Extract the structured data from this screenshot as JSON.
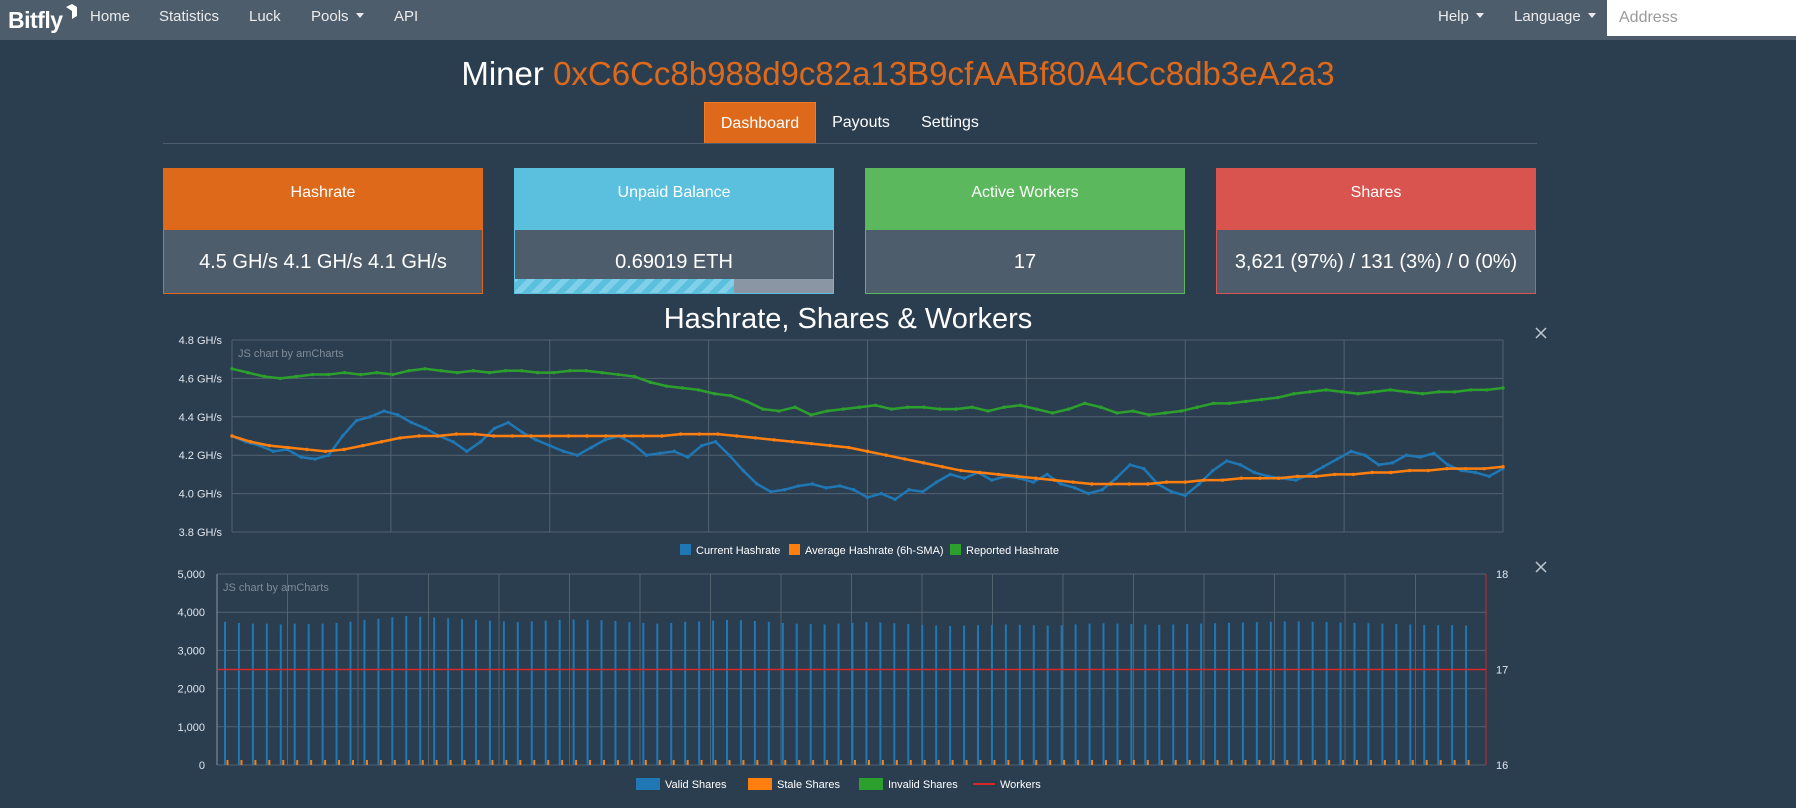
{
  "navbar": {
    "brand": "Bitfly",
    "items": [
      {
        "label": "Home"
      },
      {
        "label": "Statistics"
      },
      {
        "label": "Luck"
      },
      {
        "label": "Pools"
      },
      {
        "label": "API"
      }
    ],
    "right_items": [
      {
        "label": "Help"
      },
      {
        "label": "Language"
      }
    ],
    "address_placeholder": "Address"
  },
  "title": {
    "prefix": "Miner",
    "address": "0xC6Cc8b988d9c82a13B9cfAABf80A4Cc8db3eA2a3"
  },
  "tabs": [
    {
      "label": "Dashboard",
      "active": true
    },
    {
      "label": "Payouts",
      "active": false
    },
    {
      "label": "Settings",
      "active": false
    }
  ],
  "panels": {
    "hashrate": {
      "title": "Hashrate",
      "value": "4.5 GH/s 4.1 GH/s 4.1 GH/s",
      "color": "#df691a"
    },
    "unpaid": {
      "title": "Unpaid Balance",
      "value": "0.69019 ETH",
      "color": "#5bc0de",
      "progress": 0.69
    },
    "workers": {
      "title": "Active Workers",
      "value": "17",
      "color": "#5cb85c"
    },
    "shares": {
      "title": "Shares",
      "value": "3,621 (97%) / 131 (3%) / 0 (0%)",
      "color": "#d9534f"
    }
  },
  "charts_heading": "Hashrate, Shares & Workers",
  "chart_data": [
    {
      "type": "line",
      "watermark": "JS chart by amCharts",
      "y_ticks": [
        "4.8 GH/s",
        "4.6 GH/s",
        "4.4 GH/s",
        "4.2 GH/s",
        "4.0 GH/s",
        "3.8 GH/s"
      ],
      "ylim": [
        3.8,
        4.8
      ],
      "series": [
        {
          "name": "Current Hashrate",
          "color": "#1f77b4",
          "values": [
            4.3,
            4.27,
            4.25,
            4.22,
            4.23,
            4.19,
            4.18,
            4.2,
            4.3,
            4.38,
            4.4,
            4.43,
            4.41,
            4.37,
            4.34,
            4.3,
            4.27,
            4.22,
            4.27,
            4.34,
            4.37,
            4.32,
            4.28,
            4.25,
            4.22,
            4.2,
            4.24,
            4.28,
            4.3,
            4.26,
            4.2,
            4.21,
            4.22,
            4.19,
            4.25,
            4.27,
            4.2,
            4.12,
            4.05,
            4.01,
            4.02,
            4.04,
            4.05,
            4.03,
            4.04,
            4.02,
            3.98,
            4.0,
            3.97,
            4.02,
            4.01,
            4.06,
            4.1,
            4.08,
            4.11,
            4.07,
            4.09,
            4.08,
            4.06,
            4.1,
            4.05,
            4.03,
            4.0,
            4.02,
            4.08,
            4.15,
            4.13,
            4.05,
            4.01,
            3.99,
            4.05,
            4.12,
            4.17,
            4.15,
            4.11,
            4.09,
            4.08,
            4.07,
            4.1,
            4.14,
            4.18,
            4.22,
            4.2,
            4.15,
            4.16,
            4.2,
            4.19,
            4.21,
            4.15,
            4.12,
            4.11,
            4.09,
            4.13
          ]
        },
        {
          "name": "Average Hashrate (6h-SMA)",
          "color": "#ff7f0e",
          "values": [
            4.3,
            4.27,
            4.25,
            4.24,
            4.23,
            4.22,
            4.23,
            4.25,
            4.27,
            4.29,
            4.3,
            4.3,
            4.31,
            4.31,
            4.3,
            4.3,
            4.3,
            4.3,
            4.3,
            4.3,
            4.3,
            4.3,
            4.3,
            4.3,
            4.31,
            4.31,
            4.31,
            4.3,
            4.29,
            4.28,
            4.27,
            4.26,
            4.25,
            4.24,
            4.22,
            4.2,
            4.18,
            4.16,
            4.14,
            4.12,
            4.11,
            4.1,
            4.09,
            4.08,
            4.07,
            4.06,
            4.05,
            4.05,
            4.05,
            4.05,
            4.06,
            4.06,
            4.07,
            4.07,
            4.08,
            4.08,
            4.08,
            4.09,
            4.09,
            4.1,
            4.1,
            4.11,
            4.11,
            4.12,
            4.12,
            4.13,
            4.13,
            4.13,
            4.14
          ]
        },
        {
          "name": "Reported Hashrate",
          "color": "#2ca02c",
          "values": [
            4.65,
            4.63,
            4.61,
            4.6,
            4.61,
            4.62,
            4.62,
            4.63,
            4.62,
            4.63,
            4.62,
            4.64,
            4.65,
            4.64,
            4.63,
            4.64,
            4.63,
            4.64,
            4.64,
            4.63,
            4.63,
            4.64,
            4.64,
            4.63,
            4.62,
            4.61,
            4.58,
            4.56,
            4.55,
            4.54,
            4.52,
            4.51,
            4.48,
            4.44,
            4.43,
            4.45,
            4.41,
            4.43,
            4.44,
            4.45,
            4.46,
            4.44,
            4.45,
            4.45,
            4.44,
            4.44,
            4.45,
            4.43,
            4.45,
            4.46,
            4.44,
            4.42,
            4.44,
            4.47,
            4.45,
            4.42,
            4.43,
            4.41,
            4.42,
            4.43,
            4.45,
            4.47,
            4.47,
            4.48,
            4.49,
            4.5,
            4.52,
            4.53,
            4.54,
            4.53,
            4.52,
            4.53,
            4.54,
            4.53,
            4.52,
            4.53,
            4.53,
            4.54,
            4.54,
            4.55
          ]
        }
      ]
    },
    {
      "type": "bar",
      "watermark": "JS chart by amCharts",
      "y_ticks_left": [
        "5,000",
        "4,000",
        "3,000",
        "2,000",
        "1,000",
        "0"
      ],
      "y_ticks_right": [
        "18",
        "17",
        "16"
      ],
      "ylim": [
        0,
        5000
      ],
      "ylim_right": [
        16,
        18
      ],
      "bar_count": 90,
      "series": [
        {
          "name": "Valid Shares",
          "color": "#1f77b4",
          "values": [
            3750,
            3720,
            3700,
            3700,
            3680,
            3700,
            3690,
            3700,
            3720,
            3750,
            3800,
            3830,
            3870,
            3900,
            3880,
            3860,
            3840,
            3820,
            3800,
            3780,
            3760,
            3740,
            3760,
            3780,
            3800,
            3810,
            3800,
            3790,
            3770,
            3740,
            3720,
            3700,
            3720,
            3750,
            3760,
            3780,
            3800,
            3790,
            3770,
            3750,
            3720,
            3700,
            3690,
            3680,
            3700,
            3720,
            3740,
            3730,
            3710,
            3690,
            3670,
            3650,
            3640,
            3650,
            3660,
            3670,
            3680,
            3670,
            3660,
            3650,
            3660,
            3680,
            3700,
            3710,
            3700,
            3690,
            3680,
            3670,
            3680,
            3690,
            3700,
            3710,
            3720,
            3730,
            3740,
            3750,
            3760,
            3760,
            3750,
            3740,
            3730,
            3720,
            3710,
            3700,
            3690,
            3680,
            3670,
            3660,
            3660,
            3650
          ]
        },
        {
          "name": "Stale Shares",
          "color": "#ff7f0e",
          "value_each": 131
        },
        {
          "name": "Invalid Shares",
          "color": "#2ca02c",
          "value_each": 0
        },
        {
          "name": "Workers",
          "color": "#d62728",
          "value": 17
        }
      ]
    }
  ]
}
